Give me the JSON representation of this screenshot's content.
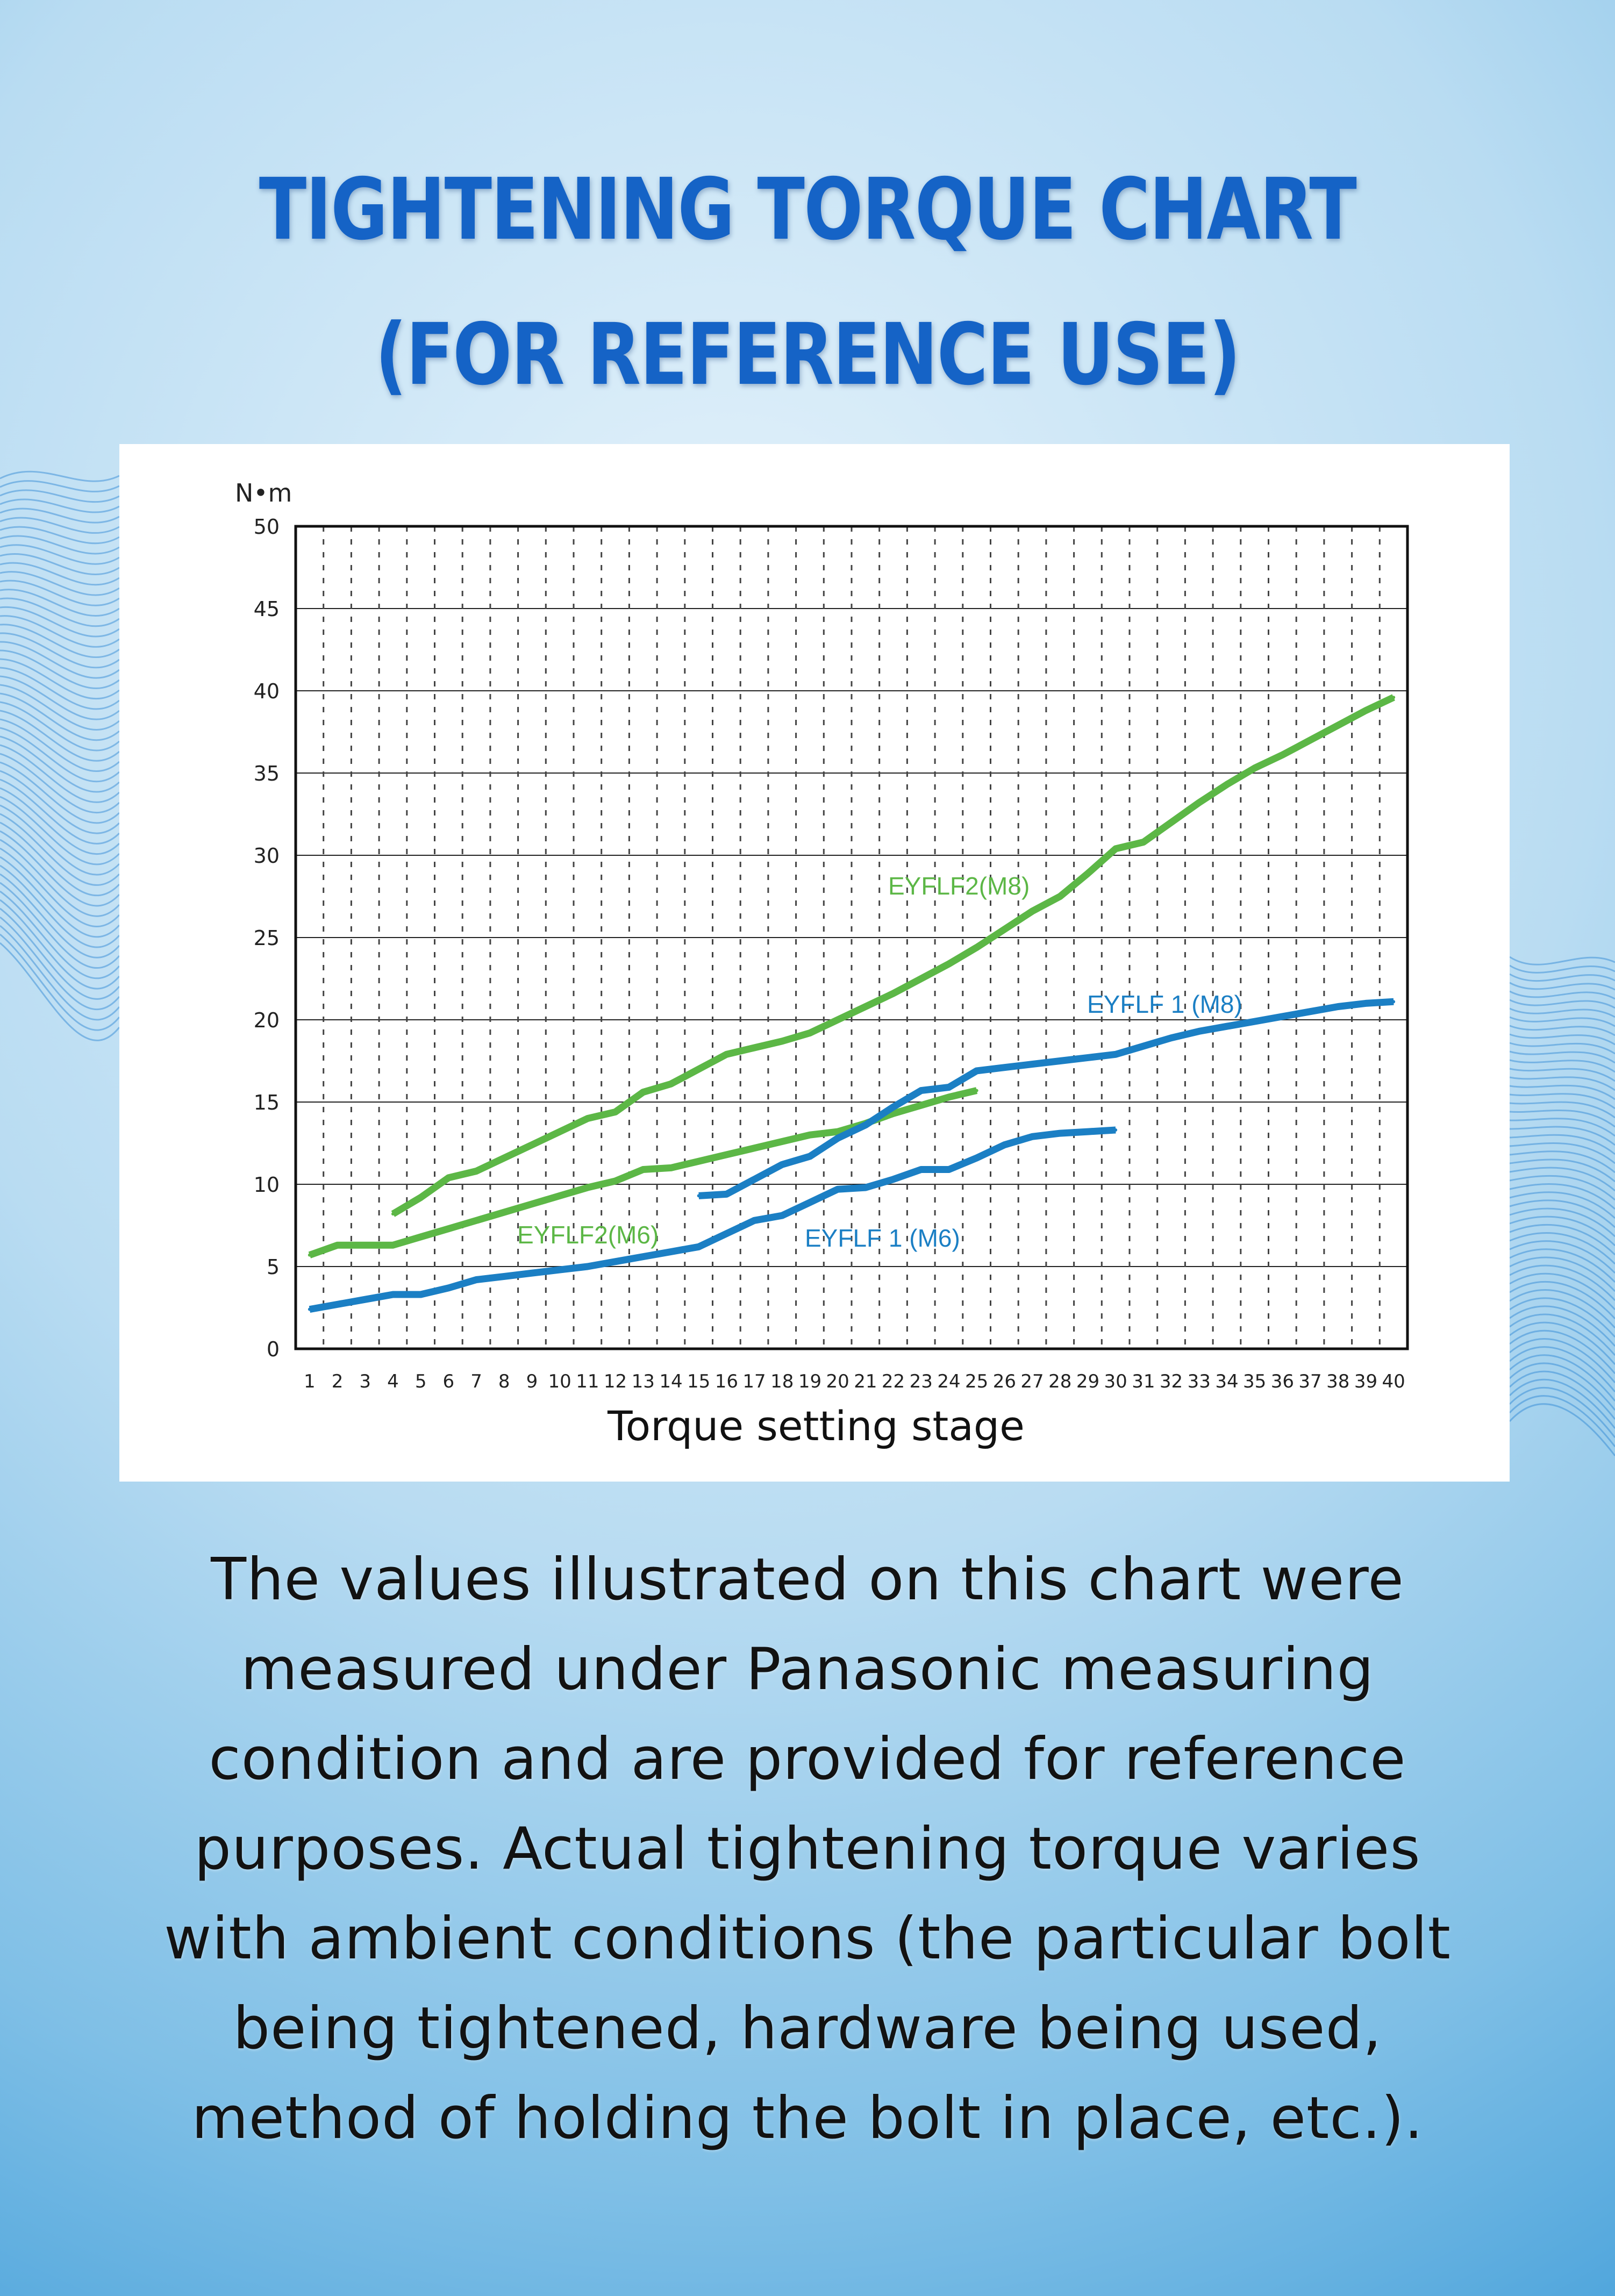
{
  "title": "TIGHTENING TORQUE CHART\n(FOR REFERENCE USE)",
  "body_text": "The values illustrated on this chart were\nmeasured under Panasonic measuring\ncondition and are provided for reference\npurposes. Actual tightening torque varies\nwith ambient conditions (the particular bolt\nbeing tightened, hardware being used,\nmethod of holding the bolt in place, etc.).",
  "colors": {
    "green": "#5cb746",
    "blue": "#1b7fc4",
    "title": "#1563c6"
  },
  "chart_data": {
    "type": "line",
    "title": "",
    "xlabel": "Torque setting stage",
    "ylabel": "N•m",
    "xlim": [
      1,
      40
    ],
    "ylim": [
      0,
      50
    ],
    "y_ticks": [
      0,
      5,
      10,
      15,
      20,
      25,
      30,
      35,
      40,
      45,
      50
    ],
    "x_ticks": [
      1,
      2,
      3,
      4,
      5,
      6,
      7,
      8,
      9,
      10,
      11,
      12,
      13,
      14,
      15,
      16,
      17,
      18,
      19,
      20,
      21,
      22,
      23,
      24,
      25,
      26,
      27,
      28,
      29,
      30,
      31,
      32,
      33,
      34,
      35,
      36,
      37,
      38,
      39,
      40
    ],
    "grid": "horizontal solid, vertical dashed",
    "series": [
      {
        "name": "EYFLF2(M8)",
        "color": "#5cb746",
        "x": [
          4,
          5,
          6,
          7,
          8,
          9,
          10,
          11,
          12,
          13,
          14,
          15,
          16,
          17,
          18,
          19,
          20,
          21,
          22,
          23,
          24,
          25,
          26,
          27,
          28,
          29,
          30,
          31,
          32,
          33,
          34,
          35,
          36,
          37,
          38,
          39,
          40
        ],
        "y": [
          8.2,
          9.2,
          10.4,
          10.8,
          11.6,
          12.4,
          13.2,
          14,
          14.4,
          15.6,
          16.1,
          17,
          17.9,
          18.3,
          18.7,
          19.2,
          20,
          20.8,
          21.6,
          22.5,
          23.4,
          24.4,
          25.5,
          26.6,
          27.5,
          28.9,
          30.4,
          30.8,
          32,
          33.2,
          34.3,
          35.3,
          36.1,
          37,
          37.9,
          38.8,
          39.6
        ]
      },
      {
        "name": "EYFLF2(M6)",
        "color": "#5cb746",
        "x": [
          1,
          2,
          3,
          4,
          5,
          6,
          7,
          8,
          9,
          10,
          11,
          12,
          13,
          14,
          15,
          16,
          17,
          18,
          19,
          20,
          21,
          22,
          23,
          24,
          25
        ],
        "y": [
          5.7,
          6.3,
          6.3,
          6.3,
          6.8,
          7.3,
          7.8,
          8.3,
          8.8,
          9.3,
          9.8,
          10.2,
          10.9,
          11,
          11.4,
          11.8,
          12.2,
          12.6,
          13,
          13.2,
          13.7,
          14.3,
          14.8,
          15.3,
          15.7
        ]
      },
      {
        "name": "EYFLF 1 (M8)",
        "color": "#1b7fc4",
        "x": [
          15,
          16,
          17,
          18,
          19,
          20,
          21,
          22,
          23,
          24,
          25,
          26,
          27,
          28,
          29,
          30,
          31,
          32,
          33,
          34,
          35,
          36,
          37,
          38,
          39,
          40
        ],
        "y": [
          9.3,
          9.4,
          10.3,
          11.2,
          11.7,
          12.8,
          13.6,
          14.7,
          15.7,
          15.9,
          16.9,
          17.1,
          17.3,
          17.5,
          17.7,
          17.9,
          18.4,
          18.9,
          19.3,
          19.6,
          19.9,
          20.2,
          20.5,
          20.8,
          21,
          21.1
        ]
      },
      {
        "name": "EYFLF 1 (M6)",
        "color": "#1b7fc4",
        "x": [
          1,
          2,
          3,
          4,
          5,
          6,
          7,
          8,
          9,
          10,
          11,
          12,
          13,
          14,
          15,
          16,
          17,
          18,
          19,
          20,
          21,
          22,
          23,
          24,
          25,
          26,
          27,
          28,
          29,
          30
        ],
        "y": [
          2.4,
          2.7,
          3.0,
          3.3,
          3.3,
          3.7,
          4.2,
          4.4,
          4.6,
          4.8,
          5.0,
          5.3,
          5.6,
          5.9,
          6.2,
          7.0,
          7.8,
          8.1,
          8.9,
          9.7,
          9.8,
          10.3,
          10.9,
          10.9,
          11.6,
          12.4,
          12.9,
          13.1,
          13.2,
          13.3
        ]
      }
    ]
  }
}
